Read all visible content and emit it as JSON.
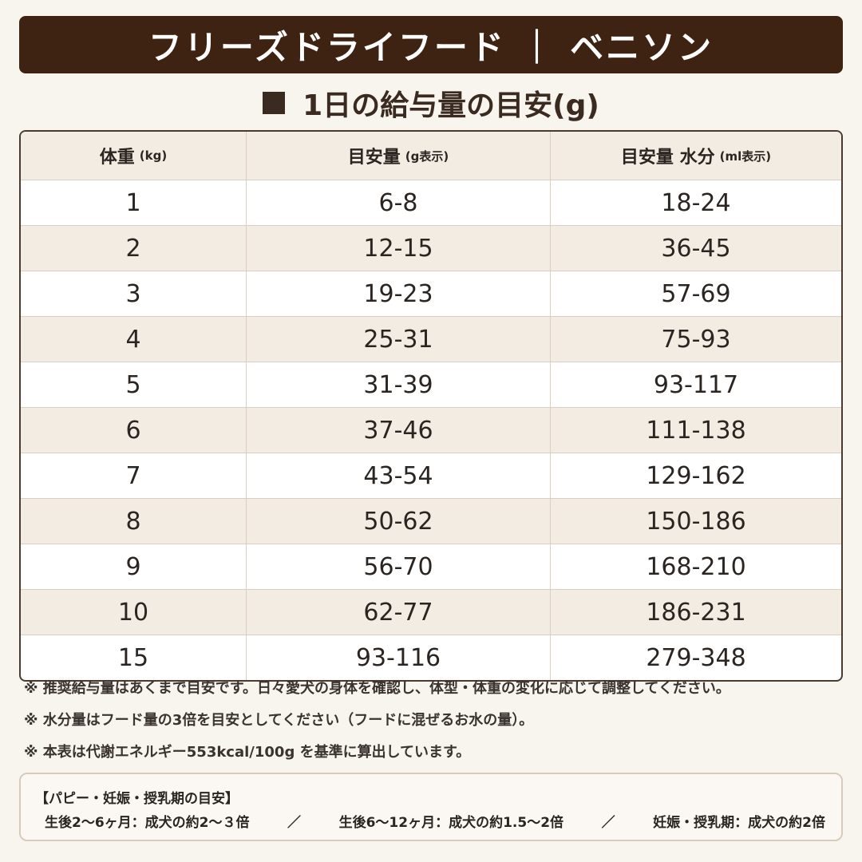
{
  "header": {
    "title": "フリーズドライフード ｜ ベニソン",
    "subtitle": "1日の給与量の目安(g)"
  },
  "table": {
    "columns": [
      {
        "label": "体重",
        "unit": "(kg)"
      },
      {
        "label": "目安量",
        "unit": "(g表示)"
      },
      {
        "label": "目安量 水分",
        "unit": "(ml表示)"
      }
    ],
    "rows": [
      [
        "1",
        "6-8",
        "18-24"
      ],
      [
        "2",
        "12-15",
        "36-45"
      ],
      [
        "3",
        "19-23",
        "57-69"
      ],
      [
        "4",
        "25-31",
        "75-93"
      ],
      [
        "5",
        "31-39",
        "93-117"
      ],
      [
        "6",
        "37-46",
        "111-138"
      ],
      [
        "7",
        "43-54",
        "129-162"
      ],
      [
        "8",
        "50-62",
        "150-186"
      ],
      [
        "9",
        "56-70",
        "168-210"
      ],
      [
        "10",
        "62-77",
        "186-231"
      ],
      [
        "15",
        "93-116",
        "279-348"
      ]
    ]
  },
  "notes": [
    "※ 推奨給与量はあくまで目安です。日々愛犬の身体を確認し、体型・体重の変化に応じて調整してください。",
    "※ 水分量はフード量の3倍を目安としてください（フードに混ぜるお水の量）。",
    "※ 本表は代謝エネルギー553kcal/100g を基準に算出しています。"
  ],
  "box": {
    "title": "【パピー・妊娠・授乳期の目安】",
    "items": [
      "生後2〜6ヶ月：成犬の約2〜３倍",
      "生後6〜12ヶ月：成犬の約1.5〜2倍",
      "妊娠・授乳期：成犬の約2倍"
    ],
    "separator": "／"
  }
}
